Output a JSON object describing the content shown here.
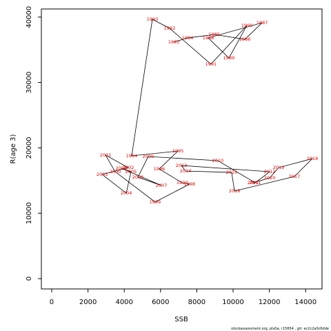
{
  "chart_data": {
    "type": "line",
    "x_label": "SSB",
    "y_label": "R(age 3)",
    "footnote": "stockassessment.org, plaSa, r15654 , git: ec2c2a0c6dde",
    "labels": [
      "1983",
      "1984",
      "1985",
      "1986",
      "1987",
      "1988",
      "1989",
      "1990",
      "1991",
      "1992",
      "1993",
      "1994",
      "1995",
      "1996",
      "1997",
      "1998",
      "1999",
      "2000",
      "2001",
      "2002",
      "2003",
      "2004",
      "2005",
      "2006",
      "2007",
      "2008",
      "2009",
      "2010",
      "2011",
      "2012",
      "2013",
      "2014",
      "2015",
      "2016",
      "2017",
      "2018",
      "2019",
      "2020",
      "2021"
    ],
    "x": [
      6730,
      7490,
      8970,
      10650,
      11600,
      8630,
      9770,
      10760,
      8780,
      6500,
      5550,
      4410,
      6960,
      5930,
      7190,
      7600,
      5700,
      3500,
      2970,
      4220,
      2780,
      4110,
      4370,
      3840,
      6050,
      4750,
      5320,
      9160,
      11220,
      12020,
      7150,
      7380,
      9920,
      10080,
      13380,
      14370,
      12510,
      12020,
      11100
    ],
    "series": [
      {
        "color": "#000000",
        "label_color": "#e00000",
        "values": [
          36180,
          36810,
          37340,
          36600,
          39130,
          36810,
          33750,
          38710,
          32800,
          38290,
          39660,
          18780,
          19510,
          16770,
          14660,
          14450,
          11710,
          16350,
          18880,
          16980,
          15930,
          13080,
          16350,
          16880,
          14240,
          15510,
          18670,
          18040,
          14660,
          16350,
          17300,
          16460,
          16240,
          13400,
          15610,
          18350,
          16980,
          15400,
          14660
        ]
      }
    ],
    "xlim": [
      -570,
      14905
    ],
    "ylim": [
      -1580,
      41245
    ],
    "xticks": [
      0,
      2000,
      4000,
      6000,
      8000,
      10000,
      12000,
      14000
    ],
    "yticks": [
      0,
      10000,
      20000,
      30000,
      40000
    ]
  }
}
